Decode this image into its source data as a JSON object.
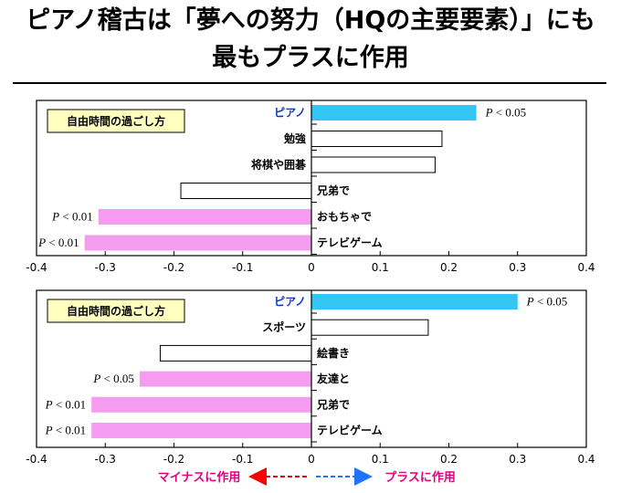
{
  "title_line1": "ピアノ稽古は「夢への努力（HQの主要要素）」にも",
  "title_line2": "最もプラスに作用",
  "footer": {
    "left_label": "マイナスに作用",
    "right_label": "プラスに作用",
    "left_arrow_color": "#ff0000",
    "right_arrow_color": "#1e74ff"
  },
  "colors": {
    "piano": "#33c5f3",
    "negative_significant": "#f59cf0",
    "neutral_fill": "#ffffff",
    "legend_box": "#ffffc0",
    "piano_label": "#0a36c8"
  },
  "chart_data": [
    {
      "type": "bar",
      "orientation": "horizontal",
      "legend": "自由時間の過ごし方",
      "xlim": [
        -0.4,
        0.4
      ],
      "ticks": [
        "-0.4",
        "-0.3",
        "-0.2",
        "-0.1",
        "0",
        "0.1",
        "0.2",
        "0.3",
        "0.4"
      ],
      "tick_values": [
        -0.4,
        -0.3,
        -0.2,
        -0.1,
        0,
        0.1,
        0.2,
        0.3,
        0.4
      ],
      "categories": [
        "ピアノ",
        "勉強",
        "将棋や囲碁",
        "兄弟で",
        "おもちゃで",
        "テレビゲーム"
      ],
      "values": [
        0.24,
        0.19,
        0.18,
        -0.19,
        -0.31,
        -0.33
      ],
      "highlight": [
        "piano",
        "none",
        "none",
        "none",
        "negative",
        "negative"
      ],
      "annotations": [
        "P < 0.05",
        "",
        "",
        "",
        "P < 0.01",
        "P < 0.01"
      ]
    },
    {
      "type": "bar",
      "orientation": "horizontal",
      "legend": "自由時間の過ごし方",
      "xlim": [
        -0.4,
        0.4
      ],
      "ticks": [
        "-0.4",
        "-0.3",
        "-0.2",
        "-0.1",
        "0",
        "0.1",
        "0.2",
        "0.3",
        "0.4"
      ],
      "tick_values": [
        -0.4,
        -0.3,
        -0.2,
        -0.1,
        0,
        0.1,
        0.2,
        0.3,
        0.4
      ],
      "categories": [
        "ピアノ",
        "スポーツ",
        "絵書き",
        "友達と",
        "兄弟で",
        "テレビゲーム"
      ],
      "values": [
        0.3,
        0.17,
        -0.22,
        -0.25,
        -0.32,
        -0.32
      ],
      "highlight": [
        "piano",
        "none",
        "none",
        "negative",
        "negative",
        "negative"
      ],
      "annotations": [
        "P < 0.05",
        "",
        "",
        "P < 0.05",
        "P < 0.01",
        "P < 0.01"
      ]
    }
  ]
}
